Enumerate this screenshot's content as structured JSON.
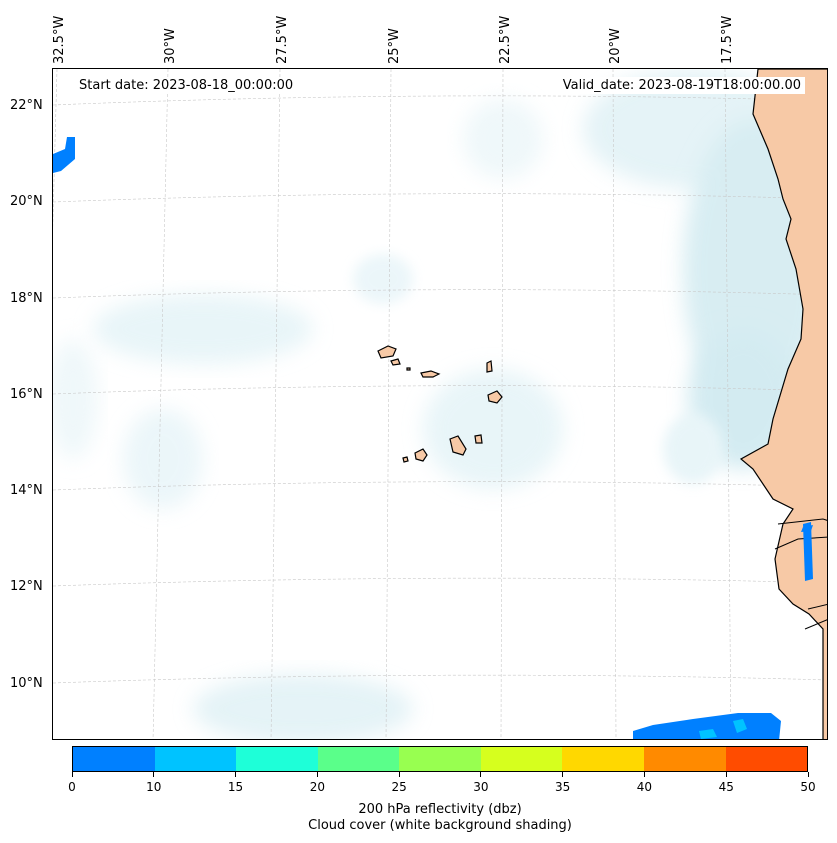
{
  "header": {
    "start_date": "Start date: 2023-08-18_00:00:00",
    "valid_date": "Valid_date: 2023-08-19T18:00:00.00"
  },
  "lon_labels": [
    "32.5°W",
    "30°W",
    "27.5°W",
    "25°W",
    "22.5°W",
    "20°W",
    "17.5°W"
  ],
  "lat_labels": [
    "22°N",
    "20°N",
    "18°N",
    "16°N",
    "14°N",
    "12°N",
    "10°N"
  ],
  "colorbar": {
    "ticks": [
      "0",
      "10",
      "15",
      "20",
      "25",
      "30",
      "35",
      "40",
      "45",
      "50"
    ],
    "colors": [
      "#0080ff",
      "#00c3ff",
      "#1effd8",
      "#5aff8a",
      "#98ff50",
      "#d6ff1e",
      "#ffd800",
      "#ff8a00",
      "#ff4c00"
    ],
    "title_line1": "200 hPa reflectivity (dbz)",
    "title_line2": "Cloud cover (white background shading)"
  },
  "colors": {
    "land": "#f7c9a6",
    "cloud": "#bfe3ec",
    "coast": "#000000"
  },
  "icons": [
    "map-frame",
    "colorbar"
  ]
}
